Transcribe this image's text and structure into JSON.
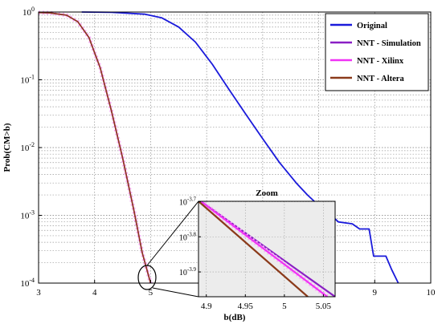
{
  "chart_data": [
    {
      "type": "line",
      "xlabel": "b(dB)",
      "ylabel": "Prob(CM>b)",
      "xlim": [
        3,
        10
      ],
      "ylim": [
        0.0001,
        1
      ],
      "yscale": "log",
      "grid": true,
      "legend_position": "top-right",
      "x_ticks": [
        "3",
        "4",
        "5",
        "6",
        "7",
        "8",
        "9",
        "10"
      ],
      "y_ticks": [
        {
          "base": "10",
          "exp": "0"
        },
        {
          "base": "10",
          "exp": "-1"
        },
        {
          "base": "10",
          "exp": "-2"
        },
        {
          "base": "10",
          "exp": "-3"
        },
        {
          "base": "10",
          "exp": "-4"
        }
      ],
      "series": [
        {
          "name": "Original",
          "color": "#1a1adb",
          "x": [
            3.77,
            4.3,
            4.9,
            5.2,
            5.5,
            5.8,
            6.1,
            6.4,
            6.7,
            7.0,
            7.3,
            7.6,
            7.8,
            8.0,
            8.2,
            8.35,
            8.6,
            8.73,
            8.9,
            8.98,
            9.2,
            9.3,
            9.42
          ],
          "y": [
            1.0,
            0.99,
            0.93,
            0.82,
            0.6,
            0.36,
            0.17,
            0.072,
            0.031,
            0.0135,
            0.006,
            0.003,
            0.002,
            0.0014,
            0.00105,
            0.0008,
            0.00075,
            0.00063,
            0.00063,
            0.00025,
            0.00025,
            0.00016,
            0.0001
          ]
        },
        {
          "name": "NNT - Simulation",
          "color": "#8a1fc4",
          "x": [
            3.0,
            3.2,
            3.5,
            3.7,
            3.9,
            4.1,
            4.3,
            4.5,
            4.7,
            4.85,
            5.0
          ],
          "y": [
            0.98,
            0.97,
            0.9,
            0.72,
            0.42,
            0.15,
            0.035,
            0.007,
            0.0012,
            0.00028,
            0.0001
          ]
        },
        {
          "name": "NNT - Xilinx",
          "color": "#f032f5",
          "x": [
            3.0,
            3.2,
            3.5,
            3.7,
            3.9,
            4.1,
            4.3,
            4.5,
            4.7,
            4.85,
            5.0
          ],
          "y": [
            0.98,
            0.97,
            0.9,
            0.72,
            0.42,
            0.15,
            0.035,
            0.007,
            0.0012,
            0.00028,
            0.0001
          ]
        },
        {
          "name": "NNT - Altera",
          "color": "#8b3a1a",
          "x": [
            3.0,
            3.2,
            3.5,
            3.7,
            3.9,
            4.1,
            4.3,
            4.5,
            4.7,
            4.85,
            5.0
          ],
          "y": [
            0.98,
            0.97,
            0.9,
            0.72,
            0.42,
            0.15,
            0.035,
            0.007,
            0.0012,
            0.00028,
            0.0001
          ]
        }
      ]
    },
    {
      "type": "line",
      "title": "Zoom",
      "xlim": [
        4.89,
        5.065
      ],
      "ylim": [
        0.000107,
        0.0002
      ],
      "yscale": "log",
      "background": "#ececec",
      "x_ticks": [
        "4.9",
        "4.95",
        "5",
        "5.05"
      ],
      "y_ticks": [
        {
          "base": "10",
          "exp": "-3.7"
        },
        {
          "base": "10",
          "exp": "-3.8"
        },
        {
          "base": "10",
          "exp": "-3.9"
        }
      ],
      "series": [
        {
          "name": "NNT - Simulation",
          "color": "#8a1fc4",
          "x": [
            4.893,
            5.065
          ],
          "y": [
            0.0002,
            0.000107
          ]
        },
        {
          "name": "NNT - Xilinx",
          "color": "#f032f5",
          "x": [
            4.893,
            5.055
          ],
          "y": [
            0.0002,
            0.000107
          ]
        },
        {
          "name": "NNT - Altera",
          "color": "#8b3a1a",
          "x": [
            4.89,
            5.03
          ],
          "y": [
            0.0002,
            0.000107
          ]
        }
      ]
    }
  ]
}
